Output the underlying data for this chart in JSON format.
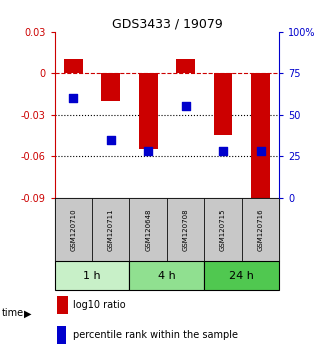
{
  "title": "GDS3433 / 19079",
  "samples": [
    "GSM120710",
    "GSM120711",
    "GSM120648",
    "GSM120708",
    "GSM120715",
    "GSM120716"
  ],
  "log10_ratio": [
    0.01,
    -0.02,
    -0.055,
    0.01,
    -0.045,
    -0.09
  ],
  "percentile_rank": [
    60,
    35,
    28,
    55,
    28,
    28
  ],
  "groups": [
    {
      "label": "1 h",
      "start": 0,
      "end": 2,
      "color": "#c8f0c8"
    },
    {
      "label": "4 h",
      "start": 2,
      "end": 4,
      "color": "#90e090"
    },
    {
      "label": "24 h",
      "start": 4,
      "end": 6,
      "color": "#50c850"
    }
  ],
  "ylim_left": [
    -0.09,
    0.03
  ],
  "ylim_right": [
    0,
    100
  ],
  "yticks_left": [
    0.03,
    0,
    -0.03,
    -0.06,
    -0.09
  ],
  "yticks_right": [
    100,
    75,
    50,
    25,
    0
  ],
  "bar_color": "#cc0000",
  "dot_color": "#0000cc",
  "bar_width": 0.5,
  "dot_size": 35,
  "grid_lines": [
    -0.03,
    -0.06
  ],
  "dashed_line": 0.0,
  "left_axis_color": "#cc0000",
  "right_axis_color": "#0000cc",
  "legend_bar_label": "log10 ratio",
  "legend_dot_label": "percentile rank within the sample",
  "time_label": "time",
  "sample_box_color": "#c8c8c8",
  "tick_fontsize": 7,
  "sample_fontsize": 5,
  "group_fontsize": 8,
  "legend_fontsize": 7,
  "title_fontsize": 9
}
